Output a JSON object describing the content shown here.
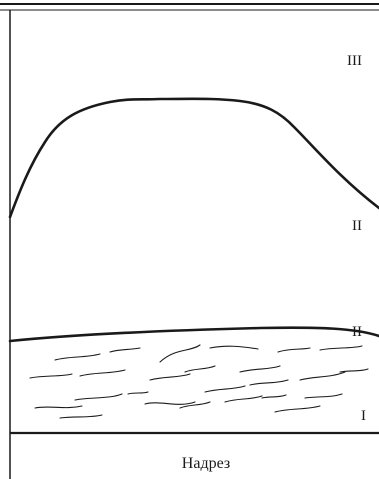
{
  "diagram": {
    "zone_labels": {
      "upper": "III",
      "middle": "II",
      "lower": "II",
      "bottom": "I"
    },
    "caption": "Надрез",
    "colors": {
      "line": "#1a1a1a",
      "background": "#ffffff"
    }
  }
}
